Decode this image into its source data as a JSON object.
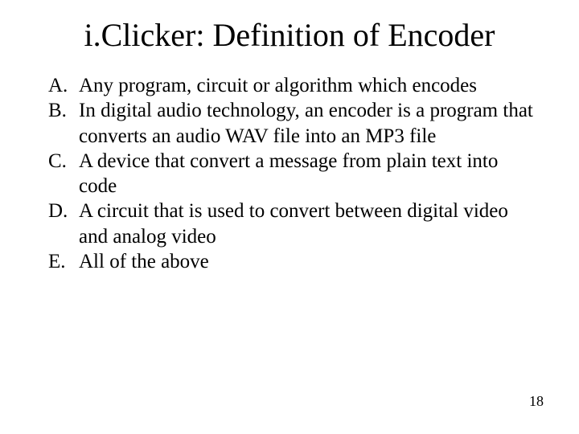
{
  "slide": {
    "title": "i.Clicker: Definition of Encoder",
    "options": [
      {
        "letter": "A.",
        "text": "Any program, circuit or algorithm which encodes"
      },
      {
        "letter": "B.",
        "text": "In digital audio technology, an encoder is a program that converts an audio WAV file into an MP3 file"
      },
      {
        "letter": "C.",
        "text": "A device that convert a message from plain text into code"
      },
      {
        "letter": "D.",
        "text": "A circuit that is used to convert between digital video and analog video"
      },
      {
        "letter": "E.",
        "text": "All of the above"
      }
    ],
    "page_number": "18",
    "style": {
      "background_color": "#ffffff",
      "text_color": "#000000",
      "font_family": "Times New Roman",
      "title_fontsize": 40,
      "body_fontsize": 25,
      "page_number_fontsize": 18
    }
  }
}
